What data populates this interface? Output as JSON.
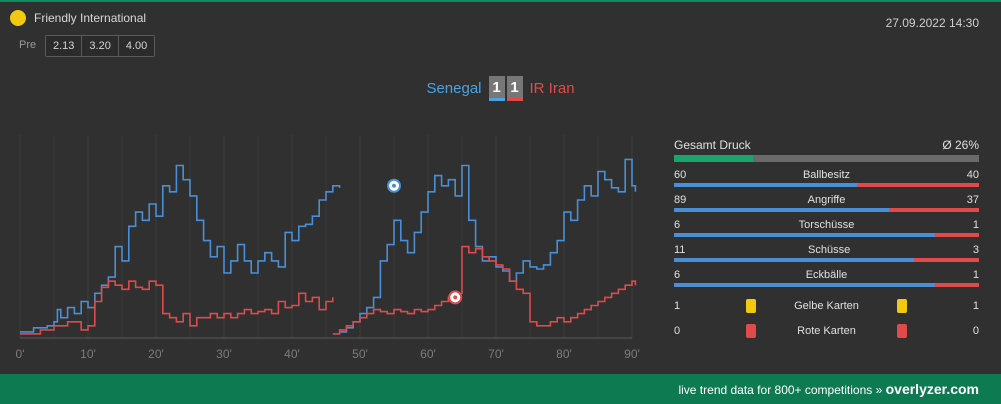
{
  "header": {
    "competition": "Friendly International",
    "datetime": "27.09.2022 14:30",
    "pre_label": "Pre",
    "odds": [
      "2.13",
      "3.20",
      "4.00"
    ]
  },
  "match": {
    "home_team": "Senegal",
    "away_team": "IR Iran",
    "home_score": "1",
    "away_score": "1"
  },
  "colors": {
    "home": "#4a8fd6",
    "away": "#e04a4a",
    "accent": "#0e7a52",
    "yellow_card": "#f2c811"
  },
  "chart_data": {
    "type": "line",
    "x_ticks": [
      "0'",
      "10'",
      "20'",
      "30'",
      "40'",
      "50'",
      "60'",
      "70'",
      "80'",
      "90'"
    ],
    "ylim": [
      0,
      100
    ],
    "series": [
      {
        "color": "#4a8fd6",
        "first_half": [
          [
            0,
            3
          ],
          [
            2,
            5
          ],
          [
            4,
            6
          ],
          [
            5,
            8
          ],
          [
            5.5,
            14
          ],
          [
            6,
            10
          ],
          [
            7,
            15
          ],
          [
            8,
            12
          ],
          [
            9,
            18
          ],
          [
            10,
            15
          ],
          [
            11,
            22
          ],
          [
            12,
            26
          ],
          [
            13,
            30
          ],
          [
            14,
            45
          ],
          [
            15,
            38
          ],
          [
            16,
            55
          ],
          [
            17,
            62
          ],
          [
            18,
            58
          ],
          [
            19,
            66
          ],
          [
            20,
            60
          ],
          [
            21,
            75
          ],
          [
            22,
            72
          ],
          [
            23,
            85
          ],
          [
            24,
            78
          ],
          [
            25,
            70
          ],
          [
            26,
            58
          ],
          [
            27,
            48
          ],
          [
            28,
            40
          ],
          [
            29,
            45
          ],
          [
            30,
            32
          ],
          [
            31,
            38
          ],
          [
            32,
            46
          ],
          [
            33,
            38
          ],
          [
            34,
            32
          ],
          [
            35,
            38
          ],
          [
            36,
            42
          ],
          [
            37,
            38
          ],
          [
            38,
            35
          ],
          [
            39,
            52
          ],
          [
            40,
            48
          ],
          [
            41,
            55
          ],
          [
            42,
            56
          ],
          [
            43,
            60
          ],
          [
            44,
            68
          ],
          [
            45,
            72
          ],
          [
            46,
            75
          ],
          [
            47,
            74
          ]
        ],
        "second_half": [
          [
            47,
            3
          ],
          [
            48,
            5
          ],
          [
            49,
            8
          ],
          [
            50,
            12
          ],
          [
            51,
            15
          ],
          [
            52,
            20
          ],
          [
            53,
            38
          ],
          [
            54,
            46
          ],
          [
            55,
            58
          ],
          [
            56,
            48
          ],
          [
            57,
            42
          ],
          [
            58,
            52
          ],
          [
            59,
            62
          ],
          [
            60,
            72
          ],
          [
            61,
            80
          ],
          [
            62,
            75
          ],
          [
            63,
            78
          ],
          [
            64,
            70
          ],
          [
            65,
            85
          ],
          [
            66,
            58
          ],
          [
            67,
            45
          ],
          [
            68,
            38
          ],
          [
            69,
            40
          ],
          [
            70,
            35
          ],
          [
            71,
            33
          ],
          [
            72,
            28
          ],
          [
            73,
            32
          ],
          [
            74,
            38
          ],
          [
            75,
            35
          ],
          [
            76,
            34
          ],
          [
            77,
            36
          ],
          [
            78,
            42
          ],
          [
            79,
            48
          ],
          [
            80,
            62
          ],
          [
            81,
            58
          ],
          [
            82,
            68
          ],
          [
            83,
            75
          ],
          [
            84,
            70
          ],
          [
            85,
            82
          ],
          [
            86,
            78
          ],
          [
            87,
            74
          ],
          [
            88,
            72
          ],
          [
            89,
            88
          ],
          [
            90,
            75
          ],
          [
            90.5,
            72
          ]
        ],
        "event_marker": {
          "minute": 55,
          "value": 75
        }
      },
      {
        "color": "#e04a4a",
        "first_half": [
          [
            0,
            2
          ],
          [
            3,
            4
          ],
          [
            5,
            6
          ],
          [
            7,
            8
          ],
          [
            9,
            4
          ],
          [
            10,
            6
          ],
          [
            11,
            18
          ],
          [
            12,
            25
          ],
          [
            13,
            28
          ],
          [
            14,
            26
          ],
          [
            15,
            24
          ],
          [
            16,
            28
          ],
          [
            17,
            25
          ],
          [
            18,
            24
          ],
          [
            19,
            28
          ],
          [
            20,
            26
          ],
          [
            21,
            12
          ],
          [
            22,
            10
          ],
          [
            23,
            8
          ],
          [
            24,
            12
          ],
          [
            25,
            6
          ],
          [
            26,
            10
          ],
          [
            27,
            10
          ],
          [
            28,
            12
          ],
          [
            29,
            10
          ],
          [
            30,
            12
          ],
          [
            31,
            10
          ],
          [
            32,
            12
          ],
          [
            33,
            14
          ],
          [
            34,
            12
          ],
          [
            35,
            13
          ],
          [
            36,
            14
          ],
          [
            37,
            12
          ],
          [
            38,
            18
          ],
          [
            39,
            15
          ],
          [
            40,
            16
          ],
          [
            41,
            22
          ],
          [
            42,
            18
          ],
          [
            43,
            20
          ],
          [
            44,
            14
          ],
          [
            45,
            18
          ],
          [
            46,
            20
          ]
        ],
        "second_half": [
          [
            46,
            2
          ],
          [
            47,
            4
          ],
          [
            48,
            6
          ],
          [
            49,
            8
          ],
          [
            50,
            10
          ],
          [
            51,
            12
          ],
          [
            52,
            14
          ],
          [
            53,
            13
          ],
          [
            54,
            12
          ],
          [
            55,
            14
          ],
          [
            56,
            13
          ],
          [
            57,
            12
          ],
          [
            58,
            14
          ],
          [
            59,
            13
          ],
          [
            60,
            14
          ],
          [
            61,
            16
          ],
          [
            62,
            18
          ],
          [
            63,
            20
          ],
          [
            64,
            22
          ],
          [
            65,
            45
          ],
          [
            66,
            42
          ],
          [
            67,
            44
          ],
          [
            68,
            40
          ],
          [
            69,
            38
          ],
          [
            70,
            36
          ],
          [
            71,
            34
          ],
          [
            72,
            28
          ],
          [
            73,
            24
          ],
          [
            74,
            22
          ],
          [
            75,
            8
          ],
          [
            76,
            6
          ],
          [
            77,
            6
          ],
          [
            78,
            8
          ],
          [
            79,
            10
          ],
          [
            80,
            8
          ],
          [
            81,
            10
          ],
          [
            82,
            12
          ],
          [
            83,
            14
          ],
          [
            84,
            16
          ],
          [
            85,
            18
          ],
          [
            86,
            20
          ],
          [
            87,
            22
          ],
          [
            88,
            24
          ],
          [
            89,
            26
          ],
          [
            90,
            28
          ],
          [
            90.5,
            26
          ]
        ],
        "event_marker": {
          "minute": 64,
          "value": 20
        }
      }
    ]
  },
  "stats": {
    "pressure": {
      "label": "Gesamt Druck",
      "value": "Ø 26%",
      "fraction": 0.26
    },
    "rows": [
      {
        "label": "Ballbesitz",
        "home": "60",
        "away": "40"
      },
      {
        "label": "Angriffe",
        "home": "89",
        "away": "37"
      },
      {
        "label": "Torschüsse",
        "home": "6",
        "away": "1"
      },
      {
        "label": "Schüsse",
        "home": "11",
        "away": "3"
      },
      {
        "label": "Eckbälle",
        "home": "6",
        "away": "1"
      }
    ],
    "cards": [
      {
        "label": "Gelbe Karten",
        "home": "1",
        "away": "1",
        "icon": "yellow-card-icon"
      },
      {
        "label": "Rote Karten",
        "home": "0",
        "away": "0",
        "icon": "red-card-icon"
      }
    ]
  },
  "footer": {
    "text": "live trend data for 800+ competitions »",
    "brand": "overlyzer.com"
  }
}
